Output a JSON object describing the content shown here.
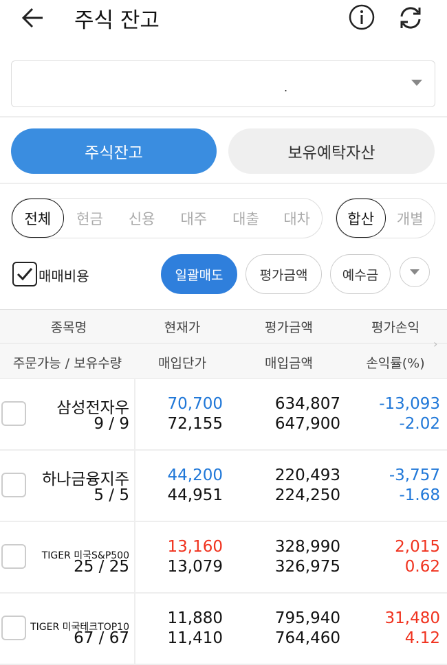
{
  "header": {
    "title": "주식 잔고",
    "back_icon": "arrow-left-icon",
    "info_icon": "info-icon",
    "refresh_icon": "refresh-icon"
  },
  "account_select": {
    "value": "."
  },
  "tabs": [
    {
      "label": "주식잔고",
      "active": true
    },
    {
      "label": "보유예탁자산",
      "active": false
    }
  ],
  "filters": {
    "types": [
      "전체",
      "현금",
      "신용",
      "대주",
      "대출",
      "대차"
    ],
    "active_type": "전체",
    "views": [
      "합산",
      "개별"
    ],
    "active_view": "합산"
  },
  "options": {
    "fee_checkbox_label": "매매비용",
    "fee_checked": true,
    "bulk_sell": "일괄매도",
    "eval_amount": "평가금액",
    "deposit": "예수금"
  },
  "table": {
    "headers_row1": [
      "종목명",
      "현재가",
      "평가금액",
      "평가손익"
    ],
    "headers_row2": [
      "주문가능 / 보유수량",
      "매입단가",
      "매입금액",
      "손익률(%)"
    ],
    "rows": [
      {
        "name": "삼성전자우",
        "qty": "9 / 9",
        "price": "70,700",
        "price_color": "blue",
        "buy_price": "72,155",
        "eval": "634,807",
        "buy_amount": "647,900",
        "pl": "-13,093",
        "pl_rate": "-2.02",
        "pl_color": "blue"
      },
      {
        "name": "하나금융지주",
        "qty": "5 / 5",
        "price": "44,200",
        "price_color": "blue",
        "buy_price": "44,951",
        "eval": "220,493",
        "buy_amount": "224,250",
        "pl": "-3,757",
        "pl_rate": "-1.68",
        "pl_color": "blue"
      },
      {
        "name": "TIGER 미국S&P500",
        "qty": "25 / 25",
        "price": "13,160",
        "price_color": "red",
        "buy_price": "13,079",
        "eval": "328,990",
        "buy_amount": "326,975",
        "pl": "2,015",
        "pl_rate": "0.62",
        "pl_color": "red"
      },
      {
        "name": "TIGER 미국테크TOP10",
        "qty": "67 / 67",
        "price": "11,880",
        "price_color": "blk",
        "buy_price": "11,410",
        "eval": "795,940",
        "buy_amount": "764,460",
        "pl": "31,480",
        "pl_rate": "4.12",
        "pl_color": "red"
      }
    ]
  },
  "colors": {
    "accent": "#3a8de0",
    "down": "#1f77d8",
    "up": "#f0321e"
  }
}
